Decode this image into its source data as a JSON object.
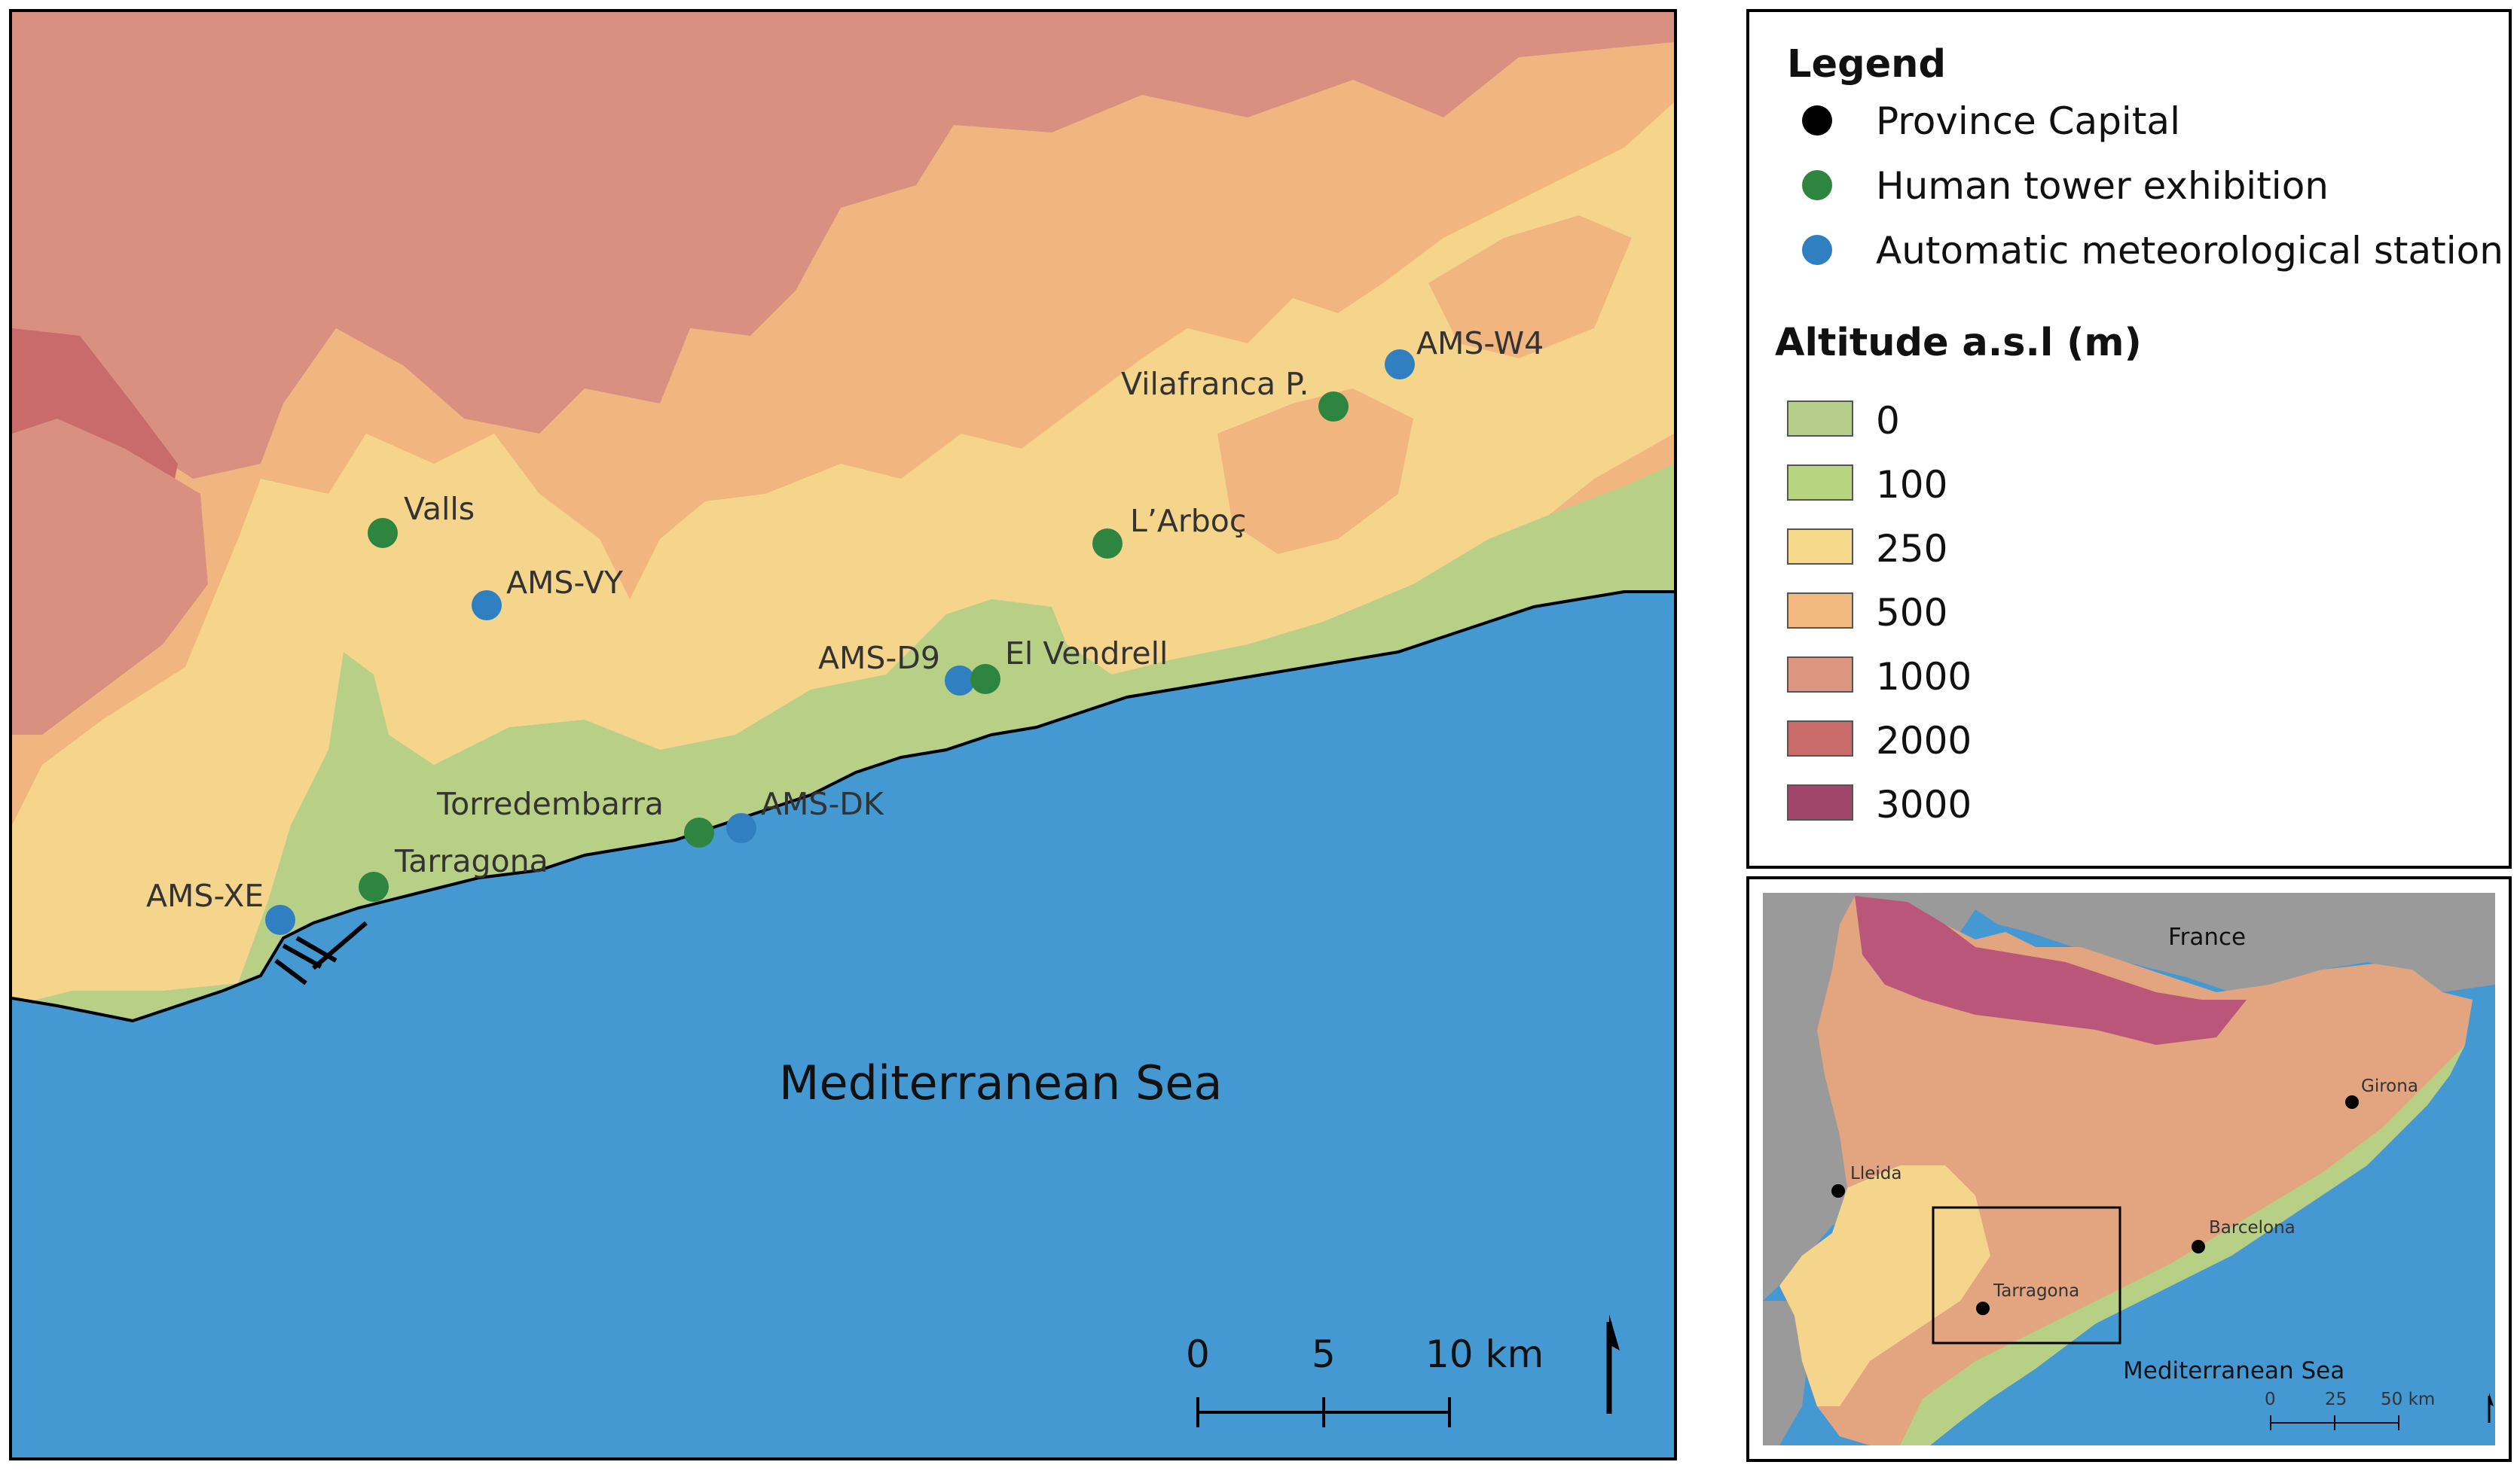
{
  "main_map": {
    "sea_label": "Mediterranean Sea",
    "places": {
      "valls": "Valls",
      "ams_vy": "AMS-VY",
      "ams_d9": "AMS-D9",
      "el_vendrell": "El Vendrell",
      "larboc": "L’Arboç",
      "vilafranca": "Vilafranca P.",
      "ams_w4": "AMS-W4",
      "torredembarra": "Torredembarra",
      "ams_dk": "AMS-DK",
      "tarragona": "Tarragona",
      "ams_xe": "AMS-XE"
    },
    "scale_bar": {
      "tick0": "0",
      "tick1": "5",
      "tick2": "10 km"
    },
    "north_arrow": "north-arrow-icon"
  },
  "legend": {
    "title": "Legend",
    "items": [
      {
        "label": "Province Capital",
        "color": "#000000"
      },
      {
        "label": "Human tower exhibition",
        "color": "#2e8540"
      },
      {
        "label": "Automatic meteorological station",
        "color": "#2f7fc1"
      }
    ],
    "altitude_title": "Altitude a.s.l (m)",
    "altitude_classes": [
      {
        "label": "0",
        "color": "#b5cf8a"
      },
      {
        "label": "100",
        "color": "#b7d47f"
      },
      {
        "label": "250",
        "color": "#f7d98b"
      },
      {
        "label": "500",
        "color": "#f2b97e"
      },
      {
        "label": "1000",
        "color": "#dc9580"
      },
      {
        "label": "2000",
        "color": "#c96b6b"
      },
      {
        "label": "3000",
        "color": "#a2456a"
      }
    ]
  },
  "inset_map": {
    "france": "France",
    "sea_label": "Mediterranean Sea",
    "cities": {
      "girona": "Girona",
      "lleida": "Lleida",
      "barcelona": "Barcelona",
      "tarragona": "Tarragona"
    },
    "scale_bar": {
      "tick0": "0",
      "tick1": "25",
      "tick2": "50 km"
    }
  },
  "colors": {
    "sea": "#4499d3",
    "coastal_green": "#b7d086",
    "low_yellow": "#f5d58c",
    "mid_orange": "#f1b680",
    "high_pink": "#d99080",
    "station_blue": "#2f7fc1",
    "tower_green": "#2e8540",
    "inset_grey": "#9a9a9a"
  }
}
